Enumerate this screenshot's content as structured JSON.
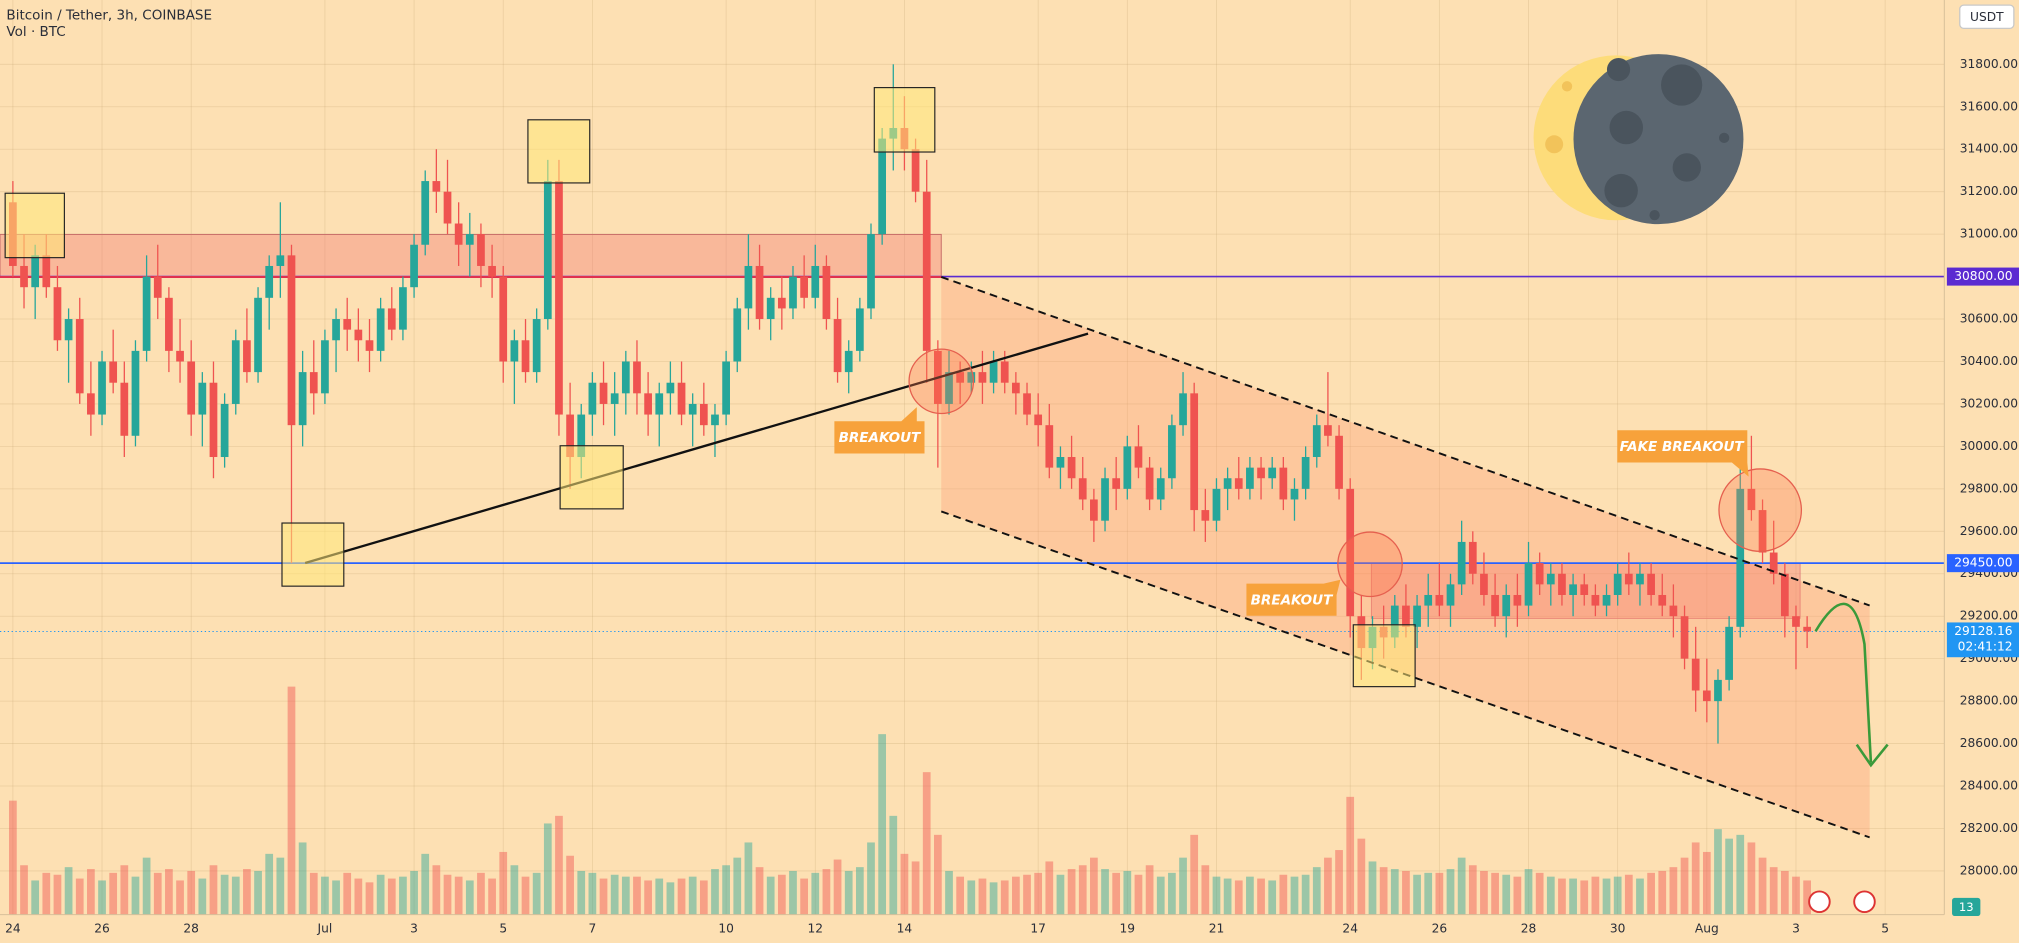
{
  "chart_data": {
    "type": "candlestick",
    "title": "Bitcoin / Tether, 3h, COINBASE",
    "subtitle": "Vol · BTC",
    "currency": "USDT",
    "badge": "13",
    "up_color": "#26a69a",
    "down_color": "#ef5350",
    "ylim": [
      27794,
      32103
    ],
    "yticks": [
      {
        "value": 31800,
        "label": "31800.00"
      },
      {
        "value": 31600,
        "label": "31600.00"
      },
      {
        "value": 31400,
        "label": "31400.00"
      },
      {
        "value": 31200,
        "label": "31200.00"
      },
      {
        "value": 31000,
        "label": "31000.00"
      },
      {
        "value": 30800,
        "label": "30800.00"
      },
      {
        "value": 30600,
        "label": "30600.00"
      },
      {
        "value": 30400,
        "label": "30400.00"
      },
      {
        "value": 30200,
        "label": "30200.00"
      },
      {
        "value": 30000,
        "label": "30000.00"
      },
      {
        "value": 29800,
        "label": "29800.00"
      },
      {
        "value": 29600,
        "label": "29600.00"
      },
      {
        "value": 29400,
        "label": "29400.00"
      },
      {
        "value": 29200,
        "label": "29200.00"
      },
      {
        "value": 29000,
        "label": "29000.00"
      },
      {
        "value": 28800,
        "label": "28800.00"
      },
      {
        "value": 28600,
        "label": "28600.00"
      },
      {
        "value": 28400,
        "label": "28400.00"
      },
      {
        "value": 28200,
        "label": "28200.00"
      },
      {
        "value": 28000,
        "label": "28000.00"
      }
    ],
    "xticks": [
      {
        "value": 0,
        "label": "24"
      },
      {
        "value": 8,
        "label": "26"
      },
      {
        "value": 16,
        "label": "28"
      },
      {
        "value": 28,
        "label": "Jul"
      },
      {
        "value": 36,
        "label": "3"
      },
      {
        "value": 44,
        "label": "5"
      },
      {
        "value": 52,
        "label": "7"
      },
      {
        "value": 64,
        "label": "10"
      },
      {
        "value": 72,
        "label": "12"
      },
      {
        "value": 80,
        "label": "14"
      },
      {
        "value": 92,
        "label": "17"
      },
      {
        "value": 100,
        "label": "19"
      },
      {
        "value": 108,
        "label": "21"
      },
      {
        "value": 120,
        "label": "24"
      },
      {
        "value": 128,
        "label": "26"
      },
      {
        "value": 136,
        "label": "28"
      },
      {
        "value": 144,
        "label": "30"
      },
      {
        "value": 152,
        "label": "Aug"
      },
      {
        "value": 160,
        "label": "3"
      },
      {
        "value": 168,
        "label": "5"
      }
    ],
    "price_lines": [
      {
        "value": 30800,
        "label": "30800.00",
        "color": "#5b2bd1"
      },
      {
        "value": 29450,
        "label": "29450.00",
        "color": "#2962ff"
      }
    ],
    "last_price": {
      "value": 29128.16,
      "label": "29128.16",
      "countdown": "02:41:12",
      "color": "#2196f3"
    },
    "annotations": [
      "BREAKOUT",
      "BREAKOUT",
      "FAKE BREAKOUT"
    ],
    "candles": [
      [
        31150,
        31250,
        30800,
        30850
      ],
      [
        30850,
        31000,
        30650,
        30750
      ],
      [
        30750,
        30950,
        30600,
        30900
      ],
      [
        30900,
        31000,
        30700,
        30750
      ],
      [
        30750,
        30850,
        30450,
        30500
      ],
      [
        30500,
        30650,
        30300,
        30600
      ],
      [
        30600,
        30700,
        30200,
        30250
      ],
      [
        30250,
        30400,
        30050,
        30150
      ],
      [
        30150,
        30450,
        30100,
        30400
      ],
      [
        30400,
        30550,
        30250,
        30300
      ],
      [
        30300,
        30400,
        29950,
        30050
      ],
      [
        30050,
        30500,
        30000,
        30450
      ],
      [
        30450,
        30900,
        30400,
        30800
      ],
      [
        30800,
        30950,
        30600,
        30700
      ],
      [
        30700,
        30750,
        30350,
        30450
      ],
      [
        30450,
        30600,
        30300,
        30400
      ],
      [
        30400,
        30500,
        30050,
        30150
      ],
      [
        30150,
        30350,
        30000,
        30300
      ],
      [
        30300,
        30400,
        29850,
        29950
      ],
      [
        29950,
        30250,
        29900,
        30200
      ],
      [
        30200,
        30550,
        30150,
        30500
      ],
      [
        30500,
        30650,
        30300,
        30350
      ],
      [
        30350,
        30750,
        30300,
        30700
      ],
      [
        30700,
        30900,
        30550,
        30850
      ],
      [
        30850,
        31150,
        30700,
        30900
      ],
      [
        30900,
        30950,
        29450,
        30100
      ],
      [
        30100,
        30450,
        30000,
        30350
      ],
      [
        30350,
        30500,
        30150,
        30250
      ],
      [
        30250,
        30550,
        30200,
        30500
      ],
      [
        30500,
        30650,
        30350,
        30600
      ],
      [
        30600,
        30700,
        30450,
        30550
      ],
      [
        30550,
        30650,
        30400,
        30500
      ],
      [
        30500,
        30600,
        30350,
        30450
      ],
      [
        30450,
        30700,
        30400,
        30650
      ],
      [
        30650,
        30750,
        30500,
        30550
      ],
      [
        30550,
        30800,
        30500,
        30750
      ],
      [
        30750,
        31000,
        30700,
        30950
      ],
      [
        30950,
        31300,
        30900,
        31250
      ],
      [
        31250,
        31400,
        31100,
        31200
      ],
      [
        31200,
        31350,
        31000,
        31050
      ],
      [
        31050,
        31150,
        30850,
        30950
      ],
      [
        30950,
        31100,
        30800,
        31000
      ],
      [
        31000,
        31050,
        30750,
        30850
      ],
      [
        30850,
        30950,
        30700,
        30800
      ],
      [
        30800,
        30850,
        30300,
        30400
      ],
      [
        30400,
        30550,
        30200,
        30500
      ],
      [
        30500,
        30600,
        30300,
        30350
      ],
      [
        30350,
        30650,
        30300,
        30600
      ],
      [
        30600,
        31350,
        30550,
        31250
      ],
      [
        31250,
        31350,
        30050,
        30150
      ],
      [
        30150,
        30300,
        29800,
        29950
      ],
      [
        29950,
        30200,
        29850,
        30150
      ],
      [
        30150,
        30350,
        30050,
        30300
      ],
      [
        30300,
        30400,
        30100,
        30200
      ],
      [
        30200,
        30350,
        30050,
        30250
      ],
      [
        30250,
        30450,
        30150,
        30400
      ],
      [
        30400,
        30500,
        30150,
        30250
      ],
      [
        30250,
        30350,
        30050,
        30150
      ],
      [
        30150,
        30300,
        30000,
        30250
      ],
      [
        30250,
        30400,
        30150,
        30300
      ],
      [
        30300,
        30400,
        30100,
        30150
      ],
      [
        30150,
        30250,
        30000,
        30200
      ],
      [
        30200,
        30300,
        30050,
        30100
      ],
      [
        30100,
        30200,
        29950,
        30150
      ],
      [
        30150,
        30450,
        30100,
        30400
      ],
      [
        30400,
        30700,
        30350,
        30650
      ],
      [
        30650,
        31000,
        30550,
        30850
      ],
      [
        30850,
        30950,
        30550,
        30600
      ],
      [
        30600,
        30750,
        30500,
        30700
      ],
      [
        30700,
        30800,
        30550,
        30650
      ],
      [
        30650,
        30850,
        30600,
        30800
      ],
      [
        30800,
        30900,
        30650,
        30700
      ],
      [
        30700,
        30950,
        30650,
        30850
      ],
      [
        30850,
        30900,
        30550,
        30600
      ],
      [
        30600,
        30700,
        30300,
        30350
      ],
      [
        30350,
        30500,
        30250,
        30450
      ],
      [
        30450,
        30700,
        30400,
        30650
      ],
      [
        30650,
        31050,
        30600,
        31000
      ],
      [
        31000,
        31500,
        30950,
        31450
      ],
      [
        31450,
        31800,
        31300,
        31500
      ],
      [
        31500,
        31650,
        31300,
        31400
      ],
      [
        31400,
        31450,
        31150,
        31200
      ],
      [
        31200,
        31350,
        30300,
        30450
      ],
      [
        30450,
        30500,
        29900,
        30200
      ],
      [
        30200,
        30450,
        30150,
        30350
      ],
      [
        30350,
        30400,
        30200,
        30300
      ],
      [
        30300,
        30400,
        30250,
        30350
      ],
      [
        30350,
        30450,
        30200,
        30300
      ],
      [
        30300,
        30450,
        30250,
        30400
      ],
      [
        30400,
        30450,
        30250,
        30300
      ],
      [
        30300,
        30350,
        30150,
        30250
      ],
      [
        30250,
        30300,
        30100,
        30150
      ],
      [
        30150,
        30250,
        30000,
        30100
      ],
      [
        30100,
        30200,
        29850,
        29900
      ],
      [
        29900,
        30000,
        29800,
        29950
      ],
      [
        29950,
        30050,
        29800,
        29850
      ],
      [
        29850,
        29950,
        29700,
        29750
      ],
      [
        29750,
        29800,
        29550,
        29650
      ],
      [
        29650,
        29900,
        29600,
        29850
      ],
      [
        29850,
        29950,
        29700,
        29800
      ],
      [
        29800,
        30050,
        29750,
        30000
      ],
      [
        30000,
        30100,
        29850,
        29900
      ],
      [
        29900,
        29950,
        29700,
        29750
      ],
      [
        29750,
        29900,
        29700,
        29850
      ],
      [
        29850,
        30150,
        29800,
        30100
      ],
      [
        30100,
        30350,
        30050,
        30250
      ],
      [
        30250,
        30300,
        29600,
        29700
      ],
      [
        29700,
        29800,
        29550,
        29650
      ],
      [
        29650,
        29850,
        29600,
        29800
      ],
      [
        29800,
        29900,
        29700,
        29850
      ],
      [
        29850,
        29950,
        29750,
        29800
      ],
      [
        29800,
        29950,
        29750,
        29900
      ],
      [
        29900,
        29950,
        29750,
        29850
      ],
      [
        29850,
        29950,
        29800,
        29900
      ],
      [
        29900,
        29950,
        29700,
        29750
      ],
      [
        29750,
        29850,
        29650,
        29800
      ],
      [
        29800,
        30000,
        29750,
        29950
      ],
      [
        29950,
        30150,
        29900,
        30100
      ],
      [
        30100,
        30350,
        30000,
        30050
      ],
      [
        30050,
        30100,
        29750,
        29800
      ],
      [
        29800,
        29850,
        29100,
        29200
      ],
      [
        29200,
        29300,
        28900,
        29050
      ],
      [
        29050,
        29200,
        28950,
        29150
      ],
      [
        29150,
        29250,
        29000,
        29100
      ],
      [
        29100,
        29300,
        29050,
        29250
      ],
      [
        29250,
        29350,
        29100,
        29150
      ],
      [
        29150,
        29300,
        29050,
        29250
      ],
      [
        29250,
        29400,
        29150,
        29300
      ],
      [
        29300,
        29450,
        29200,
        29250
      ],
      [
        29250,
        29400,
        29150,
        29350
      ],
      [
        29350,
        29650,
        29300,
        29550
      ],
      [
        29550,
        29600,
        29350,
        29400
      ],
      [
        29400,
        29500,
        29250,
        29300
      ],
      [
        29300,
        29400,
        29150,
        29200
      ],
      [
        29200,
        29350,
        29100,
        29300
      ],
      [
        29300,
        29400,
        29150,
        29250
      ],
      [
        29250,
        29550,
        29200,
        29450
      ],
      [
        29450,
        29500,
        29300,
        29350
      ],
      [
        29350,
        29450,
        29250,
        29400
      ],
      [
        29400,
        29450,
        29250,
        29300
      ],
      [
        29300,
        29400,
        29200,
        29350
      ],
      [
        29350,
        29400,
        29250,
        29300
      ],
      [
        29300,
        29350,
        29200,
        29250
      ],
      [
        29250,
        29350,
        29200,
        29300
      ],
      [
        29300,
        29450,
        29250,
        29400
      ],
      [
        29400,
        29500,
        29300,
        29350
      ],
      [
        29350,
        29450,
        29250,
        29400
      ],
      [
        29400,
        29450,
        29250,
        29300
      ],
      [
        29300,
        29400,
        29200,
        29250
      ],
      [
        29250,
        29350,
        29100,
        29200
      ],
      [
        29200,
        29250,
        28950,
        29000
      ],
      [
        29000,
        29150,
        28750,
        28850
      ],
      [
        28850,
        29000,
        28700,
        28800
      ],
      [
        28800,
        28950,
        28600,
        28900
      ],
      [
        28900,
        29200,
        28850,
        29150
      ],
      [
        29150,
        29900,
        29100,
        29800
      ],
      [
        29800,
        30050,
        29650,
        29700
      ],
      [
        29700,
        29750,
        29450,
        29500
      ],
      [
        29500,
        29650,
        29350,
        29400
      ],
      [
        29400,
        29450,
        29100,
        29200
      ],
      [
        29200,
        29250,
        28950,
        29150
      ],
      [
        29150,
        29200,
        29050,
        29128.16
      ]
    ],
    "volume": [
      600,
      260,
      180,
      220,
      210,
      250,
      190,
      240,
      180,
      220,
      260,
      200,
      300,
      220,
      240,
      180,
      230,
      190,
      260,
      210,
      200,
      240,
      230,
      320,
      300,
      1200,
      380,
      220,
      200,
      180,
      220,
      190,
      170,
      210,
      190,
      200,
      230,
      320,
      260,
      210,
      200,
      180,
      220,
      190,
      330,
      260,
      200,
      220,
      480,
      520,
      310,
      230,
      220,
      190,
      210,
      200,
      200,
      180,
      190,
      170,
      190,
      200,
      180,
      240,
      260,
      300,
      380,
      250,
      200,
      210,
      230,
      190,
      220,
      240,
      290,
      230,
      250,
      380,
      950,
      520,
      320,
      280,
      750,
      420,
      230,
      200,
      180,
      190,
      170,
      180,
      200,
      210,
      220,
      280,
      210,
      240,
      260,
      300,
      240,
      220,
      230,
      210,
      260,
      200,
      220,
      300,
      420,
      260,
      200,
      190,
      180,
      200,
      190,
      180,
      210,
      200,
      210,
      250,
      300,
      340,
      620,
      400,
      280,
      250,
      240,
      230,
      210,
      220,
      220,
      240,
      300,
      260,
      230,
      220,
      210,
      200,
      240,
      220,
      200,
      190,
      190,
      180,
      200,
      190,
      200,
      210,
      190,
      220,
      230,
      250,
      300,
      380,
      330,
      450,
      400,
      420,
      380,
      300,
      250,
      230,
      200,
      180
    ]
  }
}
